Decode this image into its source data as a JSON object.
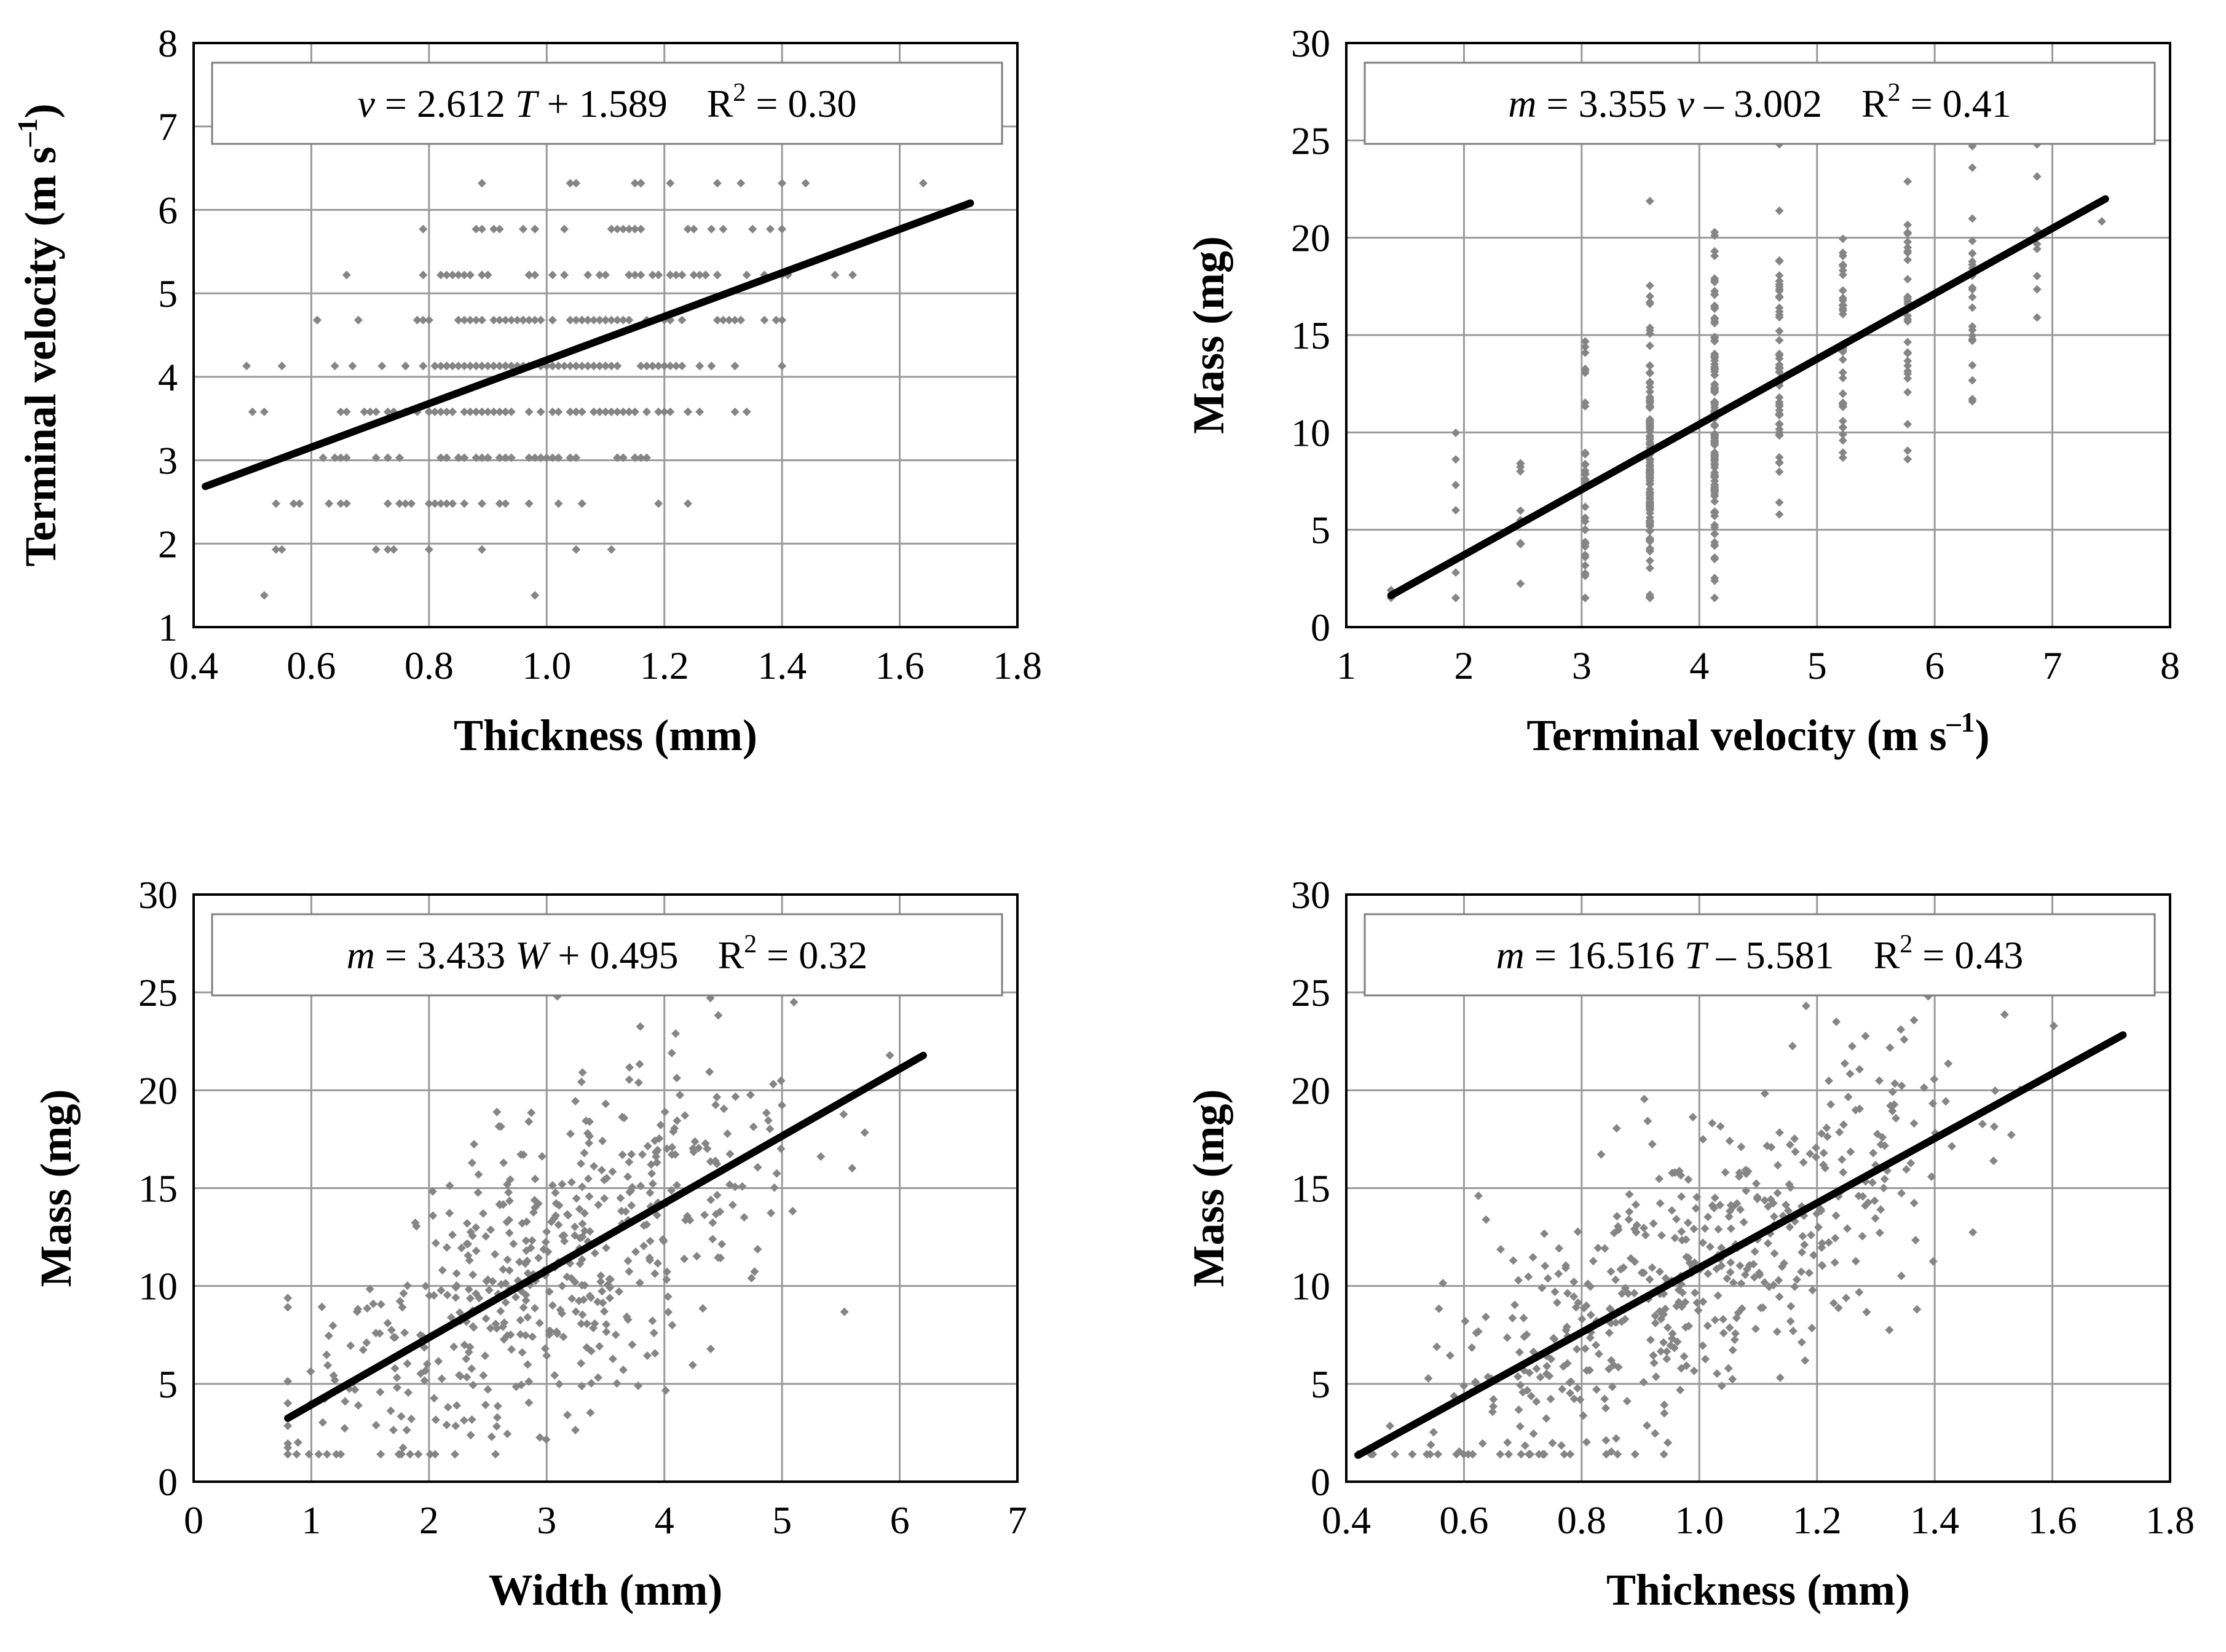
{
  "chart_data": [
    {
      "id": "tl",
      "type": "scatter",
      "xlabel": "Thickness (mm)",
      "ylabel": [
        "Terminal velocity (m s",
        "–1",
        ")"
      ],
      "xlim": [
        0.4,
        1.8
      ],
      "ylim": [
        1,
        8
      ],
      "xticks": [
        0.4,
        0.6,
        0.8,
        1.0,
        1.2,
        1.4,
        1.6,
        1.8
      ],
      "xtick_labels": [
        "0.4",
        "0.6",
        "0.8",
        "1.0",
        "1.2",
        "1.4",
        "1.6",
        "1.8"
      ],
      "yticks": [
        1,
        2,
        3,
        4,
        5,
        6,
        7,
        8
      ],
      "ytick_labels": [
        "1",
        "2",
        "3",
        "4",
        "5",
        "6",
        "7",
        "8"
      ],
      "grid": true,
      "equation": {
        "var": "v",
        "rhs": " = 2.612 ",
        "x": "T",
        "rest": " + 1.589",
        "r2_label": "R",
        "r2_exp": "2",
        "r2_value": " = 0.30"
      },
      "fit": {
        "slope": 2.612,
        "intercept": 1.589,
        "x_range": [
          0.42,
          1.72
        ]
      },
      "x_mode": "continuous",
      "y_levels": [
        1.38,
        1.93,
        2.48,
        3.03,
        3.58,
        4.13,
        4.68,
        5.22,
        5.77,
        6.32
      ],
      "y_noise": 0,
      "n_points": 420,
      "x_center": 1.0,
      "x_spread": 0.2
    },
    {
      "id": "tr",
      "type": "scatter",
      "xlabel": [
        "Terminal velocity (m s",
        "–1",
        ")"
      ],
      "ylabel": "Mass (mg)",
      "xlim": [
        1,
        8
      ],
      "ylim": [
        0,
        30
      ],
      "xticks": [
        1,
        2,
        3,
        4,
        5,
        6,
        7,
        8
      ],
      "xtick_labels": [
        "1",
        "2",
        "3",
        "4",
        "5",
        "6",
        "7",
        "8"
      ],
      "yticks": [
        0,
        5,
        10,
        15,
        20,
        25,
        30
      ],
      "ytick_labels": [
        "0",
        "5",
        "10",
        "15",
        "20",
        "25",
        "30"
      ],
      "grid": true,
      "equation": {
        "var": "m",
        "rhs": " = 3.355 ",
        "x": "v",
        "rest": " – 3.002",
        "r2_label": "R",
        "r2_exp": "2",
        "r2_value": " = 0.41"
      },
      "fit": {
        "slope": 3.355,
        "intercept": -3.002,
        "x_range": [
          1.38,
          7.45
        ]
      },
      "x_mode": "discrete",
      "x_levels": [
        1.38,
        1.93,
        2.48,
        3.03,
        3.58,
        4.13,
        4.68,
        5.22,
        5.77,
        6.32,
        6.87,
        7.42
      ],
      "level_weights": [
        2,
        8,
        10,
        40,
        130,
        120,
        50,
        40,
        30,
        25,
        10,
        1
      ],
      "y_noise": 4.5,
      "n_points": 466,
      "y_min": 1.5,
      "y_max": 24.8
    },
    {
      "id": "bl",
      "type": "scatter",
      "xlabel": "Width (mm)",
      "ylabel": "Mass (mg)",
      "xlim": [
        0,
        7
      ],
      "ylim": [
        0,
        30
      ],
      "xticks": [
        0,
        1,
        2,
        3,
        4,
        5,
        6,
        7
      ],
      "xtick_labels": [
        "0",
        "1",
        "2",
        "3",
        "4",
        "5",
        "6",
        "7"
      ],
      "yticks": [
        0,
        5,
        10,
        15,
        20,
        25,
        30
      ],
      "ytick_labels": [
        "0",
        "5",
        "10",
        "15",
        "20",
        "25",
        "30"
      ],
      "grid": true,
      "equation": {
        "var": "m",
        "rhs": " = 3.433 ",
        "x": "W",
        "rest": " + 0.495",
        "r2_label": "R",
        "r2_exp": "2",
        "r2_value": " = 0.32"
      },
      "fit": {
        "slope": 3.433,
        "intercept": 0.495,
        "x_range": [
          0.8,
          6.2
        ]
      },
      "x_mode": "continuous",
      "y_noise": 4.2,
      "n_points": 520,
      "x_center": 3.0,
      "x_spread": 1.0,
      "y_min": 1.4,
      "y_max": 24.8
    },
    {
      "id": "br",
      "type": "scatter",
      "xlabel": "Thickness (mm)",
      "ylabel": "Mass (mg)",
      "xlim": [
        0.4,
        1.8
      ],
      "ylim": [
        0,
        30
      ],
      "xticks": [
        0.4,
        0.6,
        0.8,
        1.0,
        1.2,
        1.4,
        1.6,
        1.8
      ],
      "xtick_labels": [
        "0.4",
        "0.6",
        "0.8",
        "1.0",
        "1.2",
        "1.4",
        "1.6",
        "1.8"
      ],
      "yticks": [
        0,
        5,
        10,
        15,
        20,
        25,
        30
      ],
      "ytick_labels": [
        "0",
        "5",
        "10",
        "15",
        "20",
        "25",
        "30"
      ],
      "grid": true,
      "equation": {
        "var": "m",
        "rhs": " = 16.516 ",
        "x": "T",
        "rest": " – 5.581",
        "r2_label": "R",
        "r2_exp": "2",
        "r2_value": " = 0.43"
      },
      "fit": {
        "slope": 16.516,
        "intercept": -5.581,
        "x_range": [
          0.42,
          1.72
        ]
      },
      "x_mode": "continuous",
      "y_noise": 3.8,
      "n_points": 520,
      "x_center": 1.0,
      "x_spread": 0.22,
      "y_min": 1.4,
      "y_max": 24.8
    }
  ]
}
